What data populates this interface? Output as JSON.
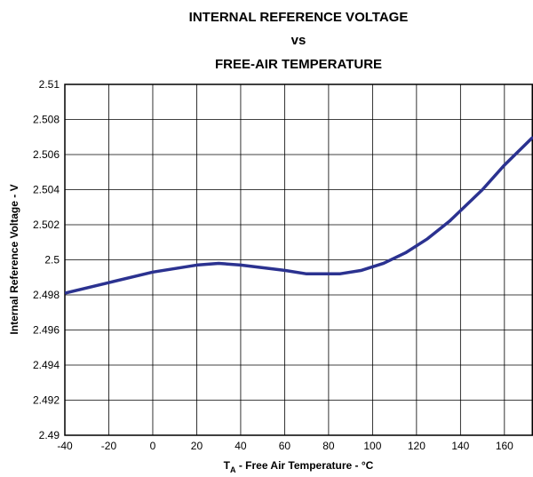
{
  "chart_data": {
    "type": "line",
    "title": [
      "INTERNAL REFERENCE VOLTAGE",
      "vs",
      "FREE-AIR TEMPERATURE"
    ],
    "x_label": {
      "symbol": "T",
      "subscript": "A",
      "text": " - Free Air Temperature - °C"
    },
    "y_label": "Internal Reference Voltage - V",
    "x": [
      -40,
      -20,
      0,
      20,
      30,
      40,
      60,
      70,
      85,
      95,
      105,
      115,
      125,
      135,
      150,
      160,
      173
    ],
    "series": [
      {
        "name": "Internal Reference Voltage",
        "color": "#2b3290",
        "values": [
          2.4981,
          2.4987,
          2.4993,
          2.4997,
          2.4998,
          2.4997,
          2.4994,
          2.4992,
          2.4992,
          2.4994,
          2.4998,
          2.5004,
          2.5012,
          2.5022,
          2.504,
          2.5054,
          2.507
        ]
      }
    ],
    "xlim": [
      -40,
      173
    ],
    "xticks": [
      -40,
      -20,
      0,
      20,
      40,
      60,
      80,
      100,
      120,
      140,
      160
    ],
    "ylim": [
      2.49,
      2.51
    ],
    "yticks": [
      2.49,
      2.492,
      2.494,
      2.496,
      2.498,
      2.5,
      2.502,
      2.504,
      2.506,
      2.508,
      2.51
    ],
    "grid": true
  }
}
